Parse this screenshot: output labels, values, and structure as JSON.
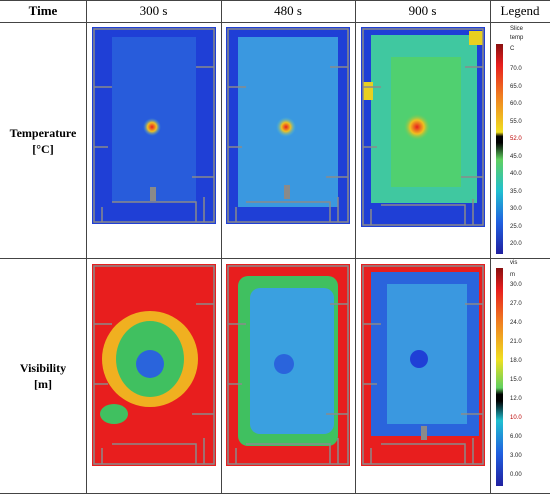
{
  "headers": {
    "time": "Time",
    "c1": "300 s",
    "c2": "480 s",
    "c3": "900 s",
    "legend": "Legend"
  },
  "rows": {
    "temperature": {
      "label_line1": "Temperature",
      "label_line2": "[°C]"
    },
    "visibility": {
      "label_line1": "Visibility",
      "label_line2": "[m]"
    }
  },
  "legend_temp": {
    "title1": "Slice",
    "title2": "temp",
    "unit": "C",
    "ticks": [
      "70.0",
      "65.0",
      "60.0",
      "55.0",
      "52.0",
      "45.0",
      "40.0",
      "35.0",
      "30.0",
      "25.0",
      "20.0"
    ],
    "highlight": "52.0"
  },
  "legend_vis": {
    "title1": "vis",
    "unit": "m",
    "ticks": [
      "30.0",
      "27.0",
      "24.0",
      "21.0",
      "18.0",
      "15.0",
      "12.0",
      "10.0",
      "6.00",
      "3.00",
      "0.00"
    ],
    "highlight": "10.0"
  },
  "colors": {
    "blue": "#1f3fd6",
    "red": "#e81e1e",
    "wall": "#8a8a8a"
  }
}
